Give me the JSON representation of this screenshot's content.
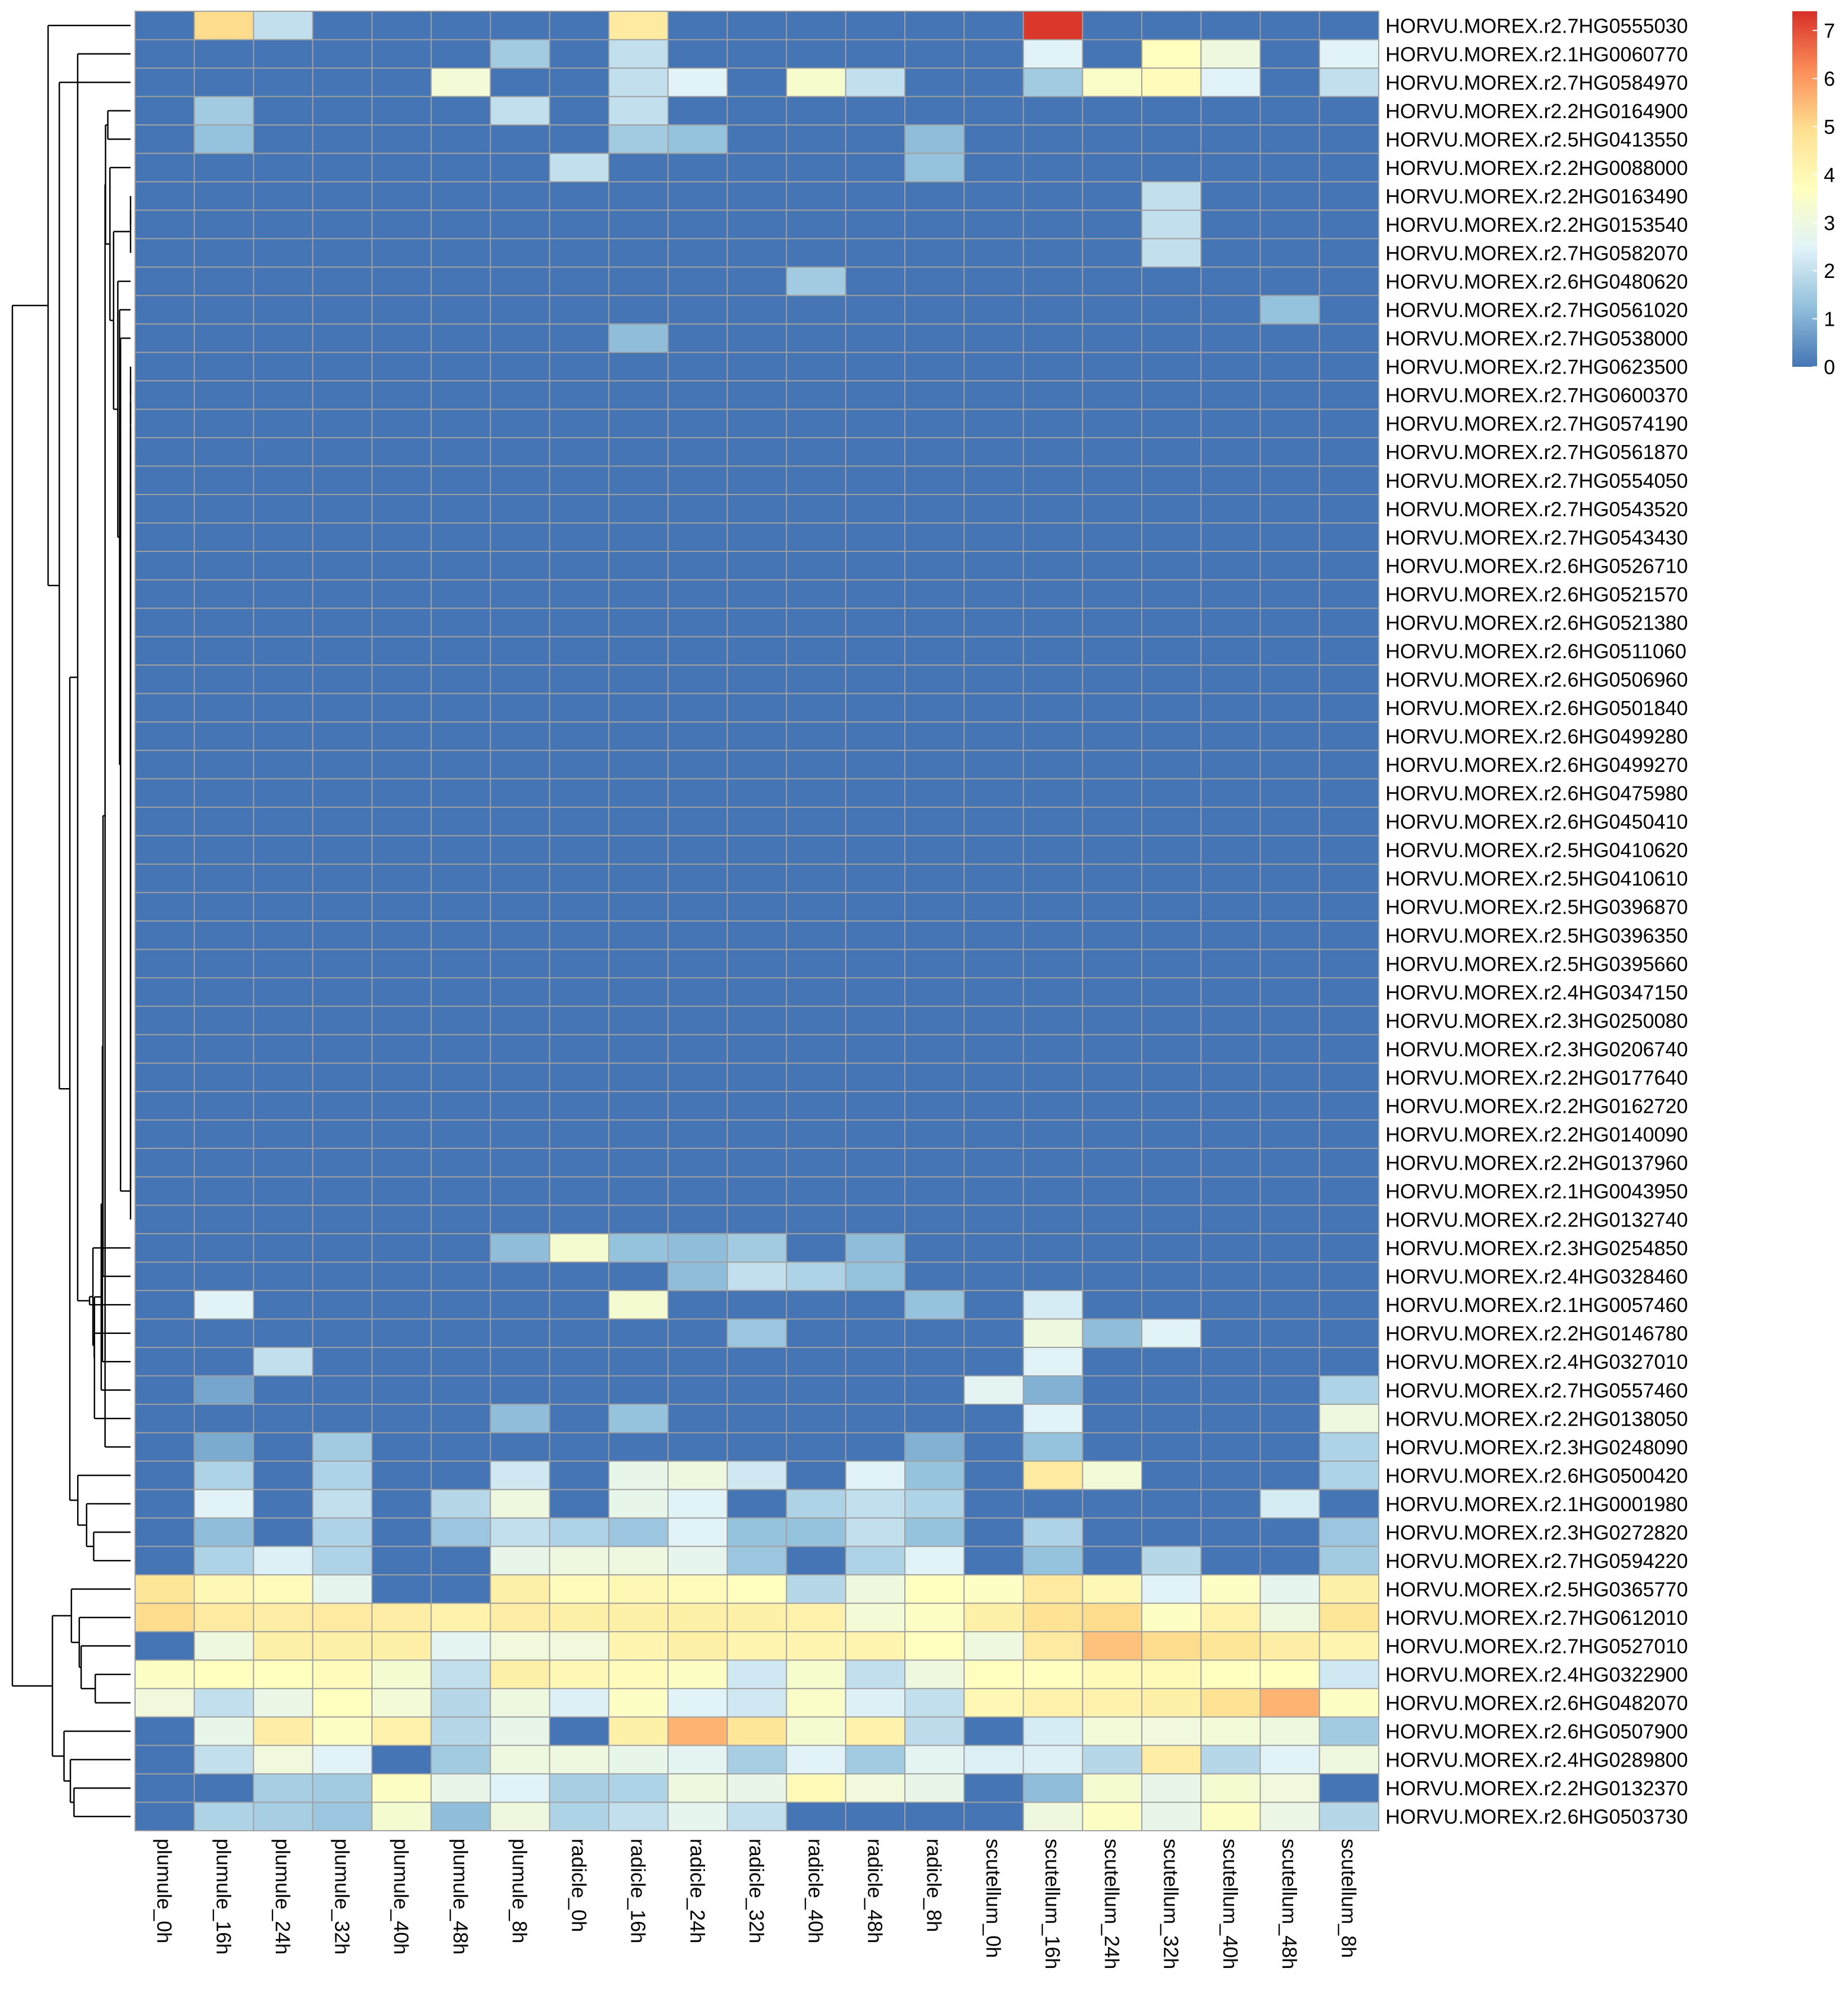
{
  "chart_data": {
    "type": "heatmap",
    "title": "",
    "xlabel": "",
    "ylabel": "",
    "columns": [
      "plumule_0h",
      "plumule_16h",
      "plumule_24h",
      "plumule_32h",
      "plumule_40h",
      "plumule_48h",
      "plumule_8h",
      "radicle_0h",
      "radicle_16h",
      "radicle_24h",
      "radicle_32h",
      "radicle_40h",
      "radicle_48h",
      "radicle_8h",
      "scutellum_0h",
      "scutellum_16h",
      "scutellum_24h",
      "scutellum_32h",
      "scutellum_40h",
      "scutellum_48h",
      "scutellum_8h"
    ],
    "rows": [
      "HORVU.MOREX.r2.7HG0555030",
      "HORVU.MOREX.r2.1HG0060770",
      "HORVU.MOREX.r2.7HG0584970",
      "HORVU.MOREX.r2.2HG0164900",
      "HORVU.MOREX.r2.5HG0413550",
      "HORVU.MOREX.r2.2HG0088000",
      "HORVU.MOREX.r2.2HG0163490",
      "HORVU.MOREX.r2.2HG0153540",
      "HORVU.MOREX.r2.7HG0582070",
      "HORVU.MOREX.r2.6HG0480620",
      "HORVU.MOREX.r2.7HG0561020",
      "HORVU.MOREX.r2.7HG0538000",
      "HORVU.MOREX.r2.7HG0623500",
      "HORVU.MOREX.r2.7HG0600370",
      "HORVU.MOREX.r2.7HG0574190",
      "HORVU.MOREX.r2.7HG0561870",
      "HORVU.MOREX.r2.7HG0554050",
      "HORVU.MOREX.r2.7HG0543520",
      "HORVU.MOREX.r2.7HG0543430",
      "HORVU.MOREX.r2.6HG0526710",
      "HORVU.MOREX.r2.6HG0521570",
      "HORVU.MOREX.r2.6HG0521380",
      "HORVU.MOREX.r2.6HG0511060",
      "HORVU.MOREX.r2.6HG0506960",
      "HORVU.MOREX.r2.6HG0501840",
      "HORVU.MOREX.r2.6HG0499280",
      "HORVU.MOREX.r2.6HG0499270",
      "HORVU.MOREX.r2.6HG0475980",
      "HORVU.MOREX.r2.6HG0450410",
      "HORVU.MOREX.r2.5HG0410620",
      "HORVU.MOREX.r2.5HG0410610",
      "HORVU.MOREX.r2.5HG0396870",
      "HORVU.MOREX.r2.5HG0396350",
      "HORVU.MOREX.r2.5HG0395660",
      "HORVU.MOREX.r2.4HG0347150",
      "HORVU.MOREX.r2.3HG0250080",
      "HORVU.MOREX.r2.3HG0206740",
      "HORVU.MOREX.r2.2HG0177640",
      "HORVU.MOREX.r2.2HG0162720",
      "HORVU.MOREX.r2.2HG0140090",
      "HORVU.MOREX.r2.2HG0137960",
      "HORVU.MOREX.r2.1HG0043950",
      "HORVU.MOREX.r2.2HG0132740",
      "HORVU.MOREX.r2.3HG0254850",
      "HORVU.MOREX.r2.4HG0328460",
      "HORVU.MOREX.r2.1HG0057460",
      "HORVU.MOREX.r2.2HG0146780",
      "HORVU.MOREX.r2.4HG0327010",
      "HORVU.MOREX.r2.7HG0557460",
      "HORVU.MOREX.r2.2HG0138050",
      "HORVU.MOREX.r2.3HG0248090",
      "HORVU.MOREX.r2.6HG0500420",
      "HORVU.MOREX.r2.1HG0001980",
      "HORVU.MOREX.r2.3HG0272820",
      "HORVU.MOREX.r2.7HG0594220",
      "HORVU.MOREX.r2.5HG0365770",
      "HORVU.MOREX.r2.7HG0612010",
      "HORVU.MOREX.r2.7HG0527010",
      "HORVU.MOREX.r2.4HG0322900",
      "HORVU.MOREX.r2.6HG0482070",
      "HORVU.MOREX.r2.6HG0507900",
      "HORVU.MOREX.r2.4HG0289800",
      "HORVU.MOREX.r2.2HG0132370",
      "HORVU.MOREX.r2.6HG0503730"
    ],
    "values": [
      [
        0,
        5,
        2,
        0,
        0,
        0,
        0,
        0,
        4.5,
        0,
        0,
        0,
        0,
        0,
        0,
        7.3,
        0,
        0,
        0,
        0,
        0
      ],
      [
        0,
        0,
        0,
        0,
        0,
        0,
        1.5,
        0,
        2,
        0,
        0,
        0,
        0,
        0,
        0,
        2.5,
        0,
        3.7,
        3,
        0,
        2.5
      ],
      [
        0,
        0,
        0,
        0,
        0,
        3.2,
        0,
        0,
        2,
        2.5,
        0,
        3.4,
        2,
        0,
        0,
        1.5,
        3.5,
        3.8,
        2.5,
        0,
        2
      ],
      [
        0,
        1.5,
        0,
        0,
        0,
        0,
        2,
        0,
        2,
        0,
        0,
        0,
        0,
        0,
        0,
        0,
        0,
        0,
        0,
        0,
        0
      ],
      [
        0,
        1.3,
        0,
        0,
        0,
        0,
        0,
        0,
        1.5,
        1.3,
        0,
        0,
        0,
        1.2,
        0,
        0,
        0,
        0,
        0,
        0,
        0
      ],
      [
        0,
        0,
        0,
        0,
        0,
        0,
        0,
        2,
        0,
        0,
        0,
        0,
        0,
        1.3,
        0,
        0,
        0,
        0,
        0,
        0,
        0
      ],
      [
        0,
        0,
        0,
        0,
        0,
        0,
        0,
        0,
        0,
        0,
        0,
        0,
        0,
        0,
        0,
        0,
        0,
        2,
        0,
        0,
        0
      ],
      [
        0,
        0,
        0,
        0,
        0,
        0,
        0,
        0,
        0,
        0,
        0,
        0,
        0,
        0,
        0,
        0,
        0,
        2,
        0,
        0,
        0
      ],
      [
        0,
        0,
        0,
        0,
        0,
        0,
        0,
        0,
        0,
        0,
        0,
        0,
        0,
        0,
        0,
        0,
        0,
        2,
        0,
        0,
        0
      ],
      [
        0,
        0,
        0,
        0,
        0,
        0,
        0,
        0,
        0,
        0,
        0,
        1.5,
        0,
        0,
        0,
        0,
        0,
        0,
        0,
        0,
        0
      ],
      [
        0,
        0,
        0,
        0,
        0,
        0,
        0,
        0,
        0,
        0,
        0,
        0,
        0,
        0,
        0,
        0,
        0,
        0,
        0,
        1.3,
        0
      ],
      [
        0,
        0,
        0,
        0,
        0,
        0,
        0,
        0,
        1.2,
        0,
        0,
        0,
        0,
        0,
        0,
        0,
        0,
        0,
        0,
        0,
        0
      ],
      [
        0,
        0,
        0,
        0,
        0,
        0,
        0,
        0,
        0,
        0,
        0,
        0,
        0,
        0,
        0,
        0,
        0,
        0,
        0,
        0,
        0
      ],
      [
        0,
        0,
        0,
        0,
        0,
        0,
        0,
        0,
        0,
        0,
        0,
        0,
        0,
        0,
        0,
        0,
        0,
        0,
        0,
        0,
        0
      ],
      [
        0,
        0,
        0,
        0,
        0,
        0,
        0,
        0,
        0,
        0,
        0,
        0,
        0,
        0,
        0,
        0,
        0,
        0,
        0,
        0,
        0
      ],
      [
        0,
        0,
        0,
        0,
        0,
        0,
        0,
        0,
        0,
        0,
        0,
        0,
        0,
        0,
        0,
        0,
        0,
        0,
        0,
        0,
        0
      ],
      [
        0,
        0,
        0,
        0,
        0,
        0,
        0,
        0,
        0,
        0,
        0,
        0,
        0,
        0,
        0,
        0,
        0,
        0,
        0,
        0,
        0
      ],
      [
        0,
        0,
        0,
        0,
        0,
        0,
        0,
        0,
        0,
        0,
        0,
        0,
        0,
        0,
        0,
        0,
        0,
        0,
        0,
        0,
        0
      ],
      [
        0,
        0,
        0,
        0,
        0,
        0,
        0,
        0,
        0,
        0,
        0,
        0,
        0,
        0,
        0,
        0,
        0,
        0,
        0,
        0,
        0
      ],
      [
        0,
        0,
        0,
        0,
        0,
        0,
        0,
        0,
        0,
        0,
        0,
        0,
        0,
        0,
        0,
        0,
        0,
        0,
        0,
        0,
        0
      ],
      [
        0,
        0,
        0,
        0,
        0,
        0,
        0,
        0,
        0,
        0,
        0,
        0,
        0,
        0,
        0,
        0,
        0,
        0,
        0,
        0,
        0
      ],
      [
        0,
        0,
        0,
        0,
        0,
        0,
        0,
        0,
        0,
        0,
        0,
        0,
        0,
        0,
        0,
        0,
        0,
        0,
        0,
        0,
        0
      ],
      [
        0,
        0,
        0,
        0,
        0,
        0,
        0,
        0,
        0,
        0,
        0,
        0,
        0,
        0,
        0,
        0,
        0,
        0,
        0,
        0,
        0
      ],
      [
        0,
        0,
        0,
        0,
        0,
        0,
        0,
        0,
        0,
        0,
        0,
        0,
        0,
        0,
        0,
        0,
        0,
        0,
        0,
        0,
        0
      ],
      [
        0,
        0,
        0,
        0,
        0,
        0,
        0,
        0,
        0,
        0,
        0,
        0,
        0,
        0,
        0,
        0,
        0,
        0,
        0,
        0,
        0
      ],
      [
        0,
        0,
        0,
        0,
        0,
        0,
        0,
        0,
        0,
        0,
        0,
        0,
        0,
        0,
        0,
        0,
        0,
        0,
        0,
        0,
        0
      ],
      [
        0,
        0,
        0,
        0,
        0,
        0,
        0,
        0,
        0,
        0,
        0,
        0,
        0,
        0,
        0,
        0,
        0,
        0,
        0,
        0,
        0
      ],
      [
        0,
        0,
        0,
        0,
        0,
        0,
        0,
        0,
        0,
        0,
        0,
        0,
        0,
        0,
        0,
        0,
        0,
        0,
        0,
        0,
        0
      ],
      [
        0,
        0,
        0,
        0,
        0,
        0,
        0,
        0,
        0,
        0,
        0,
        0,
        0,
        0,
        0,
        0,
        0,
        0,
        0,
        0,
        0
      ],
      [
        0,
        0,
        0,
        0,
        0,
        0,
        0,
        0,
        0,
        0,
        0,
        0,
        0,
        0,
        0,
        0,
        0,
        0,
        0,
        0,
        0
      ],
      [
        0,
        0,
        0,
        0,
        0,
        0,
        0,
        0,
        0,
        0,
        0,
        0,
        0,
        0,
        0,
        0,
        0,
        0,
        0,
        0,
        0
      ],
      [
        0,
        0,
        0,
        0,
        0,
        0,
        0,
        0,
        0,
        0,
        0,
        0,
        0,
        0,
        0,
        0,
        0,
        0,
        0,
        0,
        0
      ],
      [
        0,
        0,
        0,
        0,
        0,
        0,
        0,
        0,
        0,
        0,
        0,
        0,
        0,
        0,
        0,
        0,
        0,
        0,
        0,
        0,
        0
      ],
      [
        0,
        0,
        0,
        0,
        0,
        0,
        0,
        0,
        0,
        0,
        0,
        0,
        0,
        0,
        0,
        0,
        0,
        0,
        0,
        0,
        0
      ],
      [
        0,
        0,
        0,
        0,
        0,
        0,
        0,
        0,
        0,
        0,
        0,
        0,
        0,
        0,
        0,
        0,
        0,
        0,
        0,
        0,
        0
      ],
      [
        0,
        0,
        0,
        0,
        0,
        0,
        0,
        0,
        0,
        0,
        0,
        0,
        0,
        0,
        0,
        0,
        0,
        0,
        0,
        0,
        0
      ],
      [
        0,
        0,
        0,
        0,
        0,
        0,
        0,
        0,
        0,
        0,
        0,
        0,
        0,
        0,
        0,
        0,
        0,
        0,
        0,
        0,
        0
      ],
      [
        0,
        0,
        0,
        0,
        0,
        0,
        0,
        0,
        0,
        0,
        0,
        0,
        0,
        0,
        0,
        0,
        0,
        0,
        0,
        0,
        0
      ],
      [
        0,
        0,
        0,
        0,
        0,
        0,
        0,
        0,
        0,
        0,
        0,
        0,
        0,
        0,
        0,
        0,
        0,
        0,
        0,
        0,
        0
      ],
      [
        0,
        0,
        0,
        0,
        0,
        0,
        0,
        0,
        0,
        0,
        0,
        0,
        0,
        0,
        0,
        0,
        0,
        0,
        0,
        0,
        0
      ],
      [
        0,
        0,
        0,
        0,
        0,
        0,
        0,
        0,
        0,
        0,
        0,
        0,
        0,
        0,
        0,
        0,
        0,
        0,
        0,
        0,
        0
      ],
      [
        0,
        0,
        0,
        0,
        0,
        0,
        0,
        0,
        0,
        0,
        0,
        0,
        0,
        0,
        0,
        0,
        0,
        0,
        0,
        0,
        0
      ],
      [
        0,
        0,
        0,
        0,
        0,
        0,
        0,
        0,
        0,
        0,
        0,
        0,
        0,
        0,
        0,
        0,
        0,
        0,
        0,
        0,
        0
      ],
      [
        0,
        0,
        0,
        0,
        0,
        0,
        1.2,
        3.3,
        1.3,
        1.2,
        1.5,
        0,
        1.2,
        0,
        0,
        0,
        0,
        0,
        0,
        0,
        0
      ],
      [
        0,
        0,
        0,
        0,
        0,
        0,
        0,
        0,
        0,
        1.2,
        2,
        1.7,
        1.3,
        0,
        0,
        0,
        0,
        0,
        0,
        0,
        0
      ],
      [
        0,
        2.5,
        0,
        0,
        0,
        0,
        0,
        0,
        3.3,
        0,
        0,
        0,
        0,
        1.3,
        0,
        2.3,
        0,
        0,
        0,
        0,
        0
      ],
      [
        0,
        0,
        0,
        0,
        0,
        0,
        0,
        0,
        0,
        0,
        1.4,
        0,
        0,
        0,
        0,
        3,
        1.2,
        2.5,
        0,
        0,
        0
      ],
      [
        0,
        0,
        2,
        0,
        0,
        0,
        0,
        0,
        0,
        0,
        0,
        0,
        0,
        0,
        0,
        2.5,
        0,
        0,
        0,
        0,
        0
      ],
      [
        0,
        0.8,
        0,
        0,
        0,
        0,
        0,
        0,
        0,
        0,
        0,
        0,
        0,
        0,
        2.6,
        1,
        0,
        0,
        0,
        0,
        1.7
      ],
      [
        0,
        0,
        0,
        0,
        0,
        0,
        1.2,
        0,
        1.3,
        0,
        0,
        0,
        0,
        0,
        0,
        2.5,
        0,
        0,
        0,
        0,
        3
      ],
      [
        0,
        0.9,
        0,
        1.5,
        0,
        0,
        0,
        0,
        0,
        0,
        0,
        0,
        0,
        1,
        0,
        1.3,
        0,
        0,
        0,
        0,
        1.7
      ],
      [
        0,
        1.7,
        0,
        1.7,
        0,
        0,
        2.2,
        0,
        2.8,
        3,
        2.2,
        0,
        2.5,
        1.3,
        0,
        4.5,
        3.2,
        0,
        0,
        0,
        1.7
      ],
      [
        0,
        2.5,
        0,
        2,
        0,
        1.8,
        3,
        0,
        2.8,
        2.5,
        0,
        1.7,
        2,
        1.7,
        0,
        0,
        0,
        0,
        0,
        2.3,
        0
      ],
      [
        0,
        1.2,
        0,
        1.7,
        0,
        1.4,
        2,
        1.7,
        1.4,
        2.5,
        1.3,
        1.3,
        2,
        1.3,
        0,
        1.7,
        0,
        0,
        0,
        0,
        1.4
      ],
      [
        0,
        1.7,
        2.4,
        1.7,
        0,
        0,
        2.8,
        3,
        3,
        2.7,
        1.4,
        0,
        1.7,
        2.5,
        0,
        1.3,
        0,
        1.8,
        0,
        0,
        1.5
      ],
      [
        4.7,
        4,
        3.8,
        2.7,
        0,
        0,
        4.3,
        3.8,
        4,
        3.8,
        3.7,
        1.8,
        3,
        3.7,
        3.6,
        4.5,
        4,
        2.5,
        3.6,
        2.7,
        4.3
      ],
      [
        5,
        4.5,
        4.4,
        4.5,
        4.4,
        4.2,
        4.4,
        4.3,
        4.3,
        4.3,
        4.3,
        4.2,
        3.2,
        3.6,
        4.3,
        4.8,
        5,
        3.6,
        4.2,
        3,
        4.7
      ],
      [
        0,
        3,
        4.3,
        4.3,
        4.3,
        2.6,
        3.1,
        3.1,
        4.1,
        4.3,
        4.1,
        4.1,
        4.1,
        3.7,
        3,
        4.5,
        5.4,
        5,
        4.7,
        4.4,
        4.1
      ],
      [
        3.6,
        3.7,
        3.7,
        3.8,
        3.3,
        2,
        4.3,
        4,
        3.8,
        3.6,
        2.2,
        3.4,
        2,
        3,
        3.7,
        3.7,
        3.9,
        3.9,
        3.7,
        3.7,
        2.2
      ],
      [
        3.1,
        2,
        2.9,
        3.7,
        3.2,
        1.8,
        3,
        2.4,
        3.6,
        2.5,
        2.2,
        3.5,
        2.4,
        2,
        4,
        4.2,
        4.2,
        4.3,
        4.8,
        5.6,
        3.6
      ],
      [
        0,
        2.8,
        4.4,
        3.6,
        4.2,
        1.8,
        2.8,
        0,
        4.3,
        5.6,
        4.7,
        3.3,
        4.2,
        1.9,
        0,
        2.3,
        3.2,
        3.1,
        3.2,
        3,
        1.5
      ],
      [
        0,
        2,
        3.1,
        2.5,
        0,
        1.5,
        3,
        3,
        2.8,
        2.6,
        1.6,
        2.5,
        1.5,
        2.6,
        2.4,
        2.4,
        1.8,
        4.4,
        1.8,
        2.5,
        3
      ],
      [
        0,
        0,
        1.6,
        1.5,
        3.6,
        2.8,
        2.5,
        1.6,
        1.7,
        3,
        2.8,
        3.9,
        3.1,
        2.8,
        0,
        1.2,
        3.3,
        2.8,
        3.3,
        3.1,
        0
      ],
      [
        0,
        1.7,
        1.6,
        1.4,
        3.3,
        1.2,
        3,
        1.7,
        2,
        2.7,
        2,
        0,
        0,
        0,
        0,
        3,
        3.6,
        2.8,
        3.6,
        2.9,
        1.8
      ]
    ],
    "color_scale": {
      "min": 0,
      "max": 7.4,
      "ticks": [
        0,
        1,
        2,
        3,
        4,
        5,
        6,
        7
      ],
      "stops": [
        "#4575b4",
        "#91bfdb",
        "#e0f3f8",
        "#ffffbf",
        "#fee090",
        "#fc8d59",
        "#d73027"
      ]
    },
    "row_dendrogram": true,
    "grid_color": "#a0a0a0"
  }
}
